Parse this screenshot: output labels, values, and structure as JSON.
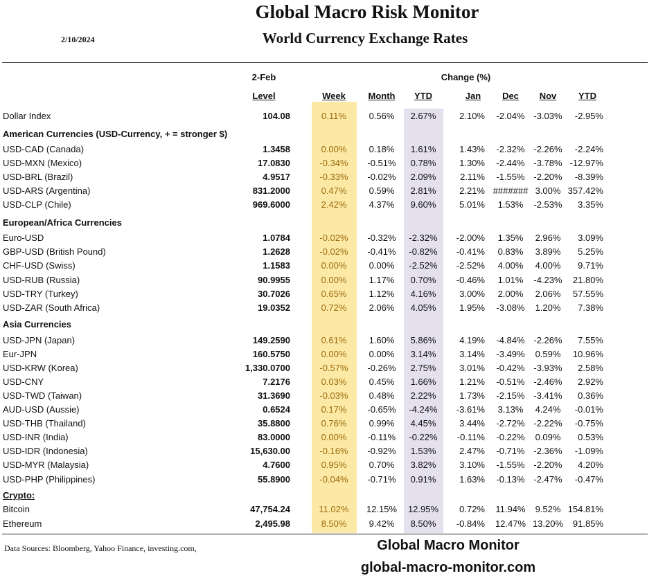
{
  "header": {
    "title": "Global Macro Risk Monitor",
    "subtitle": "World Currency Exchange Rates",
    "date": "2/10/2024"
  },
  "table": {
    "date_label": "2-Feb",
    "change_label": "Change (%)",
    "columns": [
      "Level",
      "Week",
      "Month",
      "YTD",
      "Jan",
      "Dec",
      "Nov",
      "YTD"
    ],
    "highlight_colors": {
      "week": "#fde9a6",
      "ytd": "#e4e0ee",
      "week_text": "#9a6a0a"
    },
    "rows": [
      {
        "name": "Dollar Index",
        "values": [
          "104.08",
          "0.11%",
          "0.56%",
          "2.67%",
          "2.10%",
          "-2.04%",
          "-3.03%",
          "-2.95%"
        ]
      },
      {
        "section": "American Currencies (USD-Currency, + = stronger $)"
      },
      {
        "name": "USD-CAD (Canada)",
        "values": [
          "1.3458",
          "0.00%",
          "0.18%",
          "1.61%",
          "1.43%",
          "-2.32%",
          "-2.26%",
          "-2.24%"
        ]
      },
      {
        "name": "USD-MXN  (Mexico)",
        "values": [
          "17.0830",
          "-0.34%",
          "-0.51%",
          "0.78%",
          "1.30%",
          "-2.44%",
          "-3.78%",
          "-12.97%"
        ]
      },
      {
        "name": "USD-BRL (Brazil)",
        "values": [
          "4.9517",
          "-0.33%",
          "-0.02%",
          "2.09%",
          "2.11%",
          "-1.55%",
          "-2.20%",
          "-8.39%"
        ]
      },
      {
        "name": "USD-ARS (Argentina)",
        "values": [
          "831.2000",
          "0.47%",
          "0.59%",
          "2.81%",
          "2.21%",
          "#######",
          "3.00%",
          "357.42%"
        ]
      },
      {
        "name": "USD-CLP (Chile)",
        "values": [
          "969.6000",
          "2.42%",
          "4.37%",
          "9.60%",
          "5.01%",
          "1.53%",
          "-2.53%",
          "3.35%"
        ]
      },
      {
        "section": "European/Africa Currencies"
      },
      {
        "name": "Euro-USD",
        "values": [
          "1.0784",
          "-0.02%",
          "-0.32%",
          "-2.32%",
          "-2.00%",
          "1.35%",
          "2.96%",
          "3.09%"
        ]
      },
      {
        "name": "GBP-USD (British Pound)",
        "values": [
          "1.2628",
          "-0.02%",
          "-0.41%",
          "-0.82%",
          "-0.41%",
          "0.83%",
          "3.89%",
          "5.25%"
        ]
      },
      {
        "name": "CHF-USD (Swiss)",
        "values": [
          "1.1583",
          "0.00%",
          "0.00%",
          "-2.52%",
          "-2.52%",
          "4.00%",
          "4.00%",
          "9.71%"
        ]
      },
      {
        "name": "USD-RUB (Russia)",
        "values": [
          "90.9955",
          "0.00%",
          "1.17%",
          "0.70%",
          "-0.46%",
          "1.01%",
          "-4.23%",
          "21.80%"
        ]
      },
      {
        "name": "USD-TRY (Turkey)",
        "values": [
          "30.7026",
          "0.65%",
          "1.12%",
          "4.16%",
          "3.00%",
          "2.00%",
          "2.06%",
          "57.55%"
        ]
      },
      {
        "name": "USD-ZAR (South Africa)",
        "values": [
          "19.0352",
          "0.72%",
          "2.06%",
          "4.05%",
          "1.95%",
          "-3.08%",
          "1.20%",
          "7.38%"
        ]
      },
      {
        "section": "Asia Currencies"
      },
      {
        "name": "USD-JPN (Japan)",
        "values": [
          "149.2590",
          "0.61%",
          "1.60%",
          "5.86%",
          "4.19%",
          "-4.84%",
          "-2.26%",
          "7.55%"
        ]
      },
      {
        "name": "Eur-JPN",
        "values": [
          "160.5750",
          "0.00%",
          "0.00%",
          "3.14%",
          "3.14%",
          "-3.49%",
          "0.59%",
          "10.96%"
        ]
      },
      {
        "name": "USD-KRW (Korea)",
        "values": [
          "1,330.0700",
          "-0.57%",
          "-0.26%",
          "2.75%",
          "3.01%",
          "-0.42%",
          "-3.93%",
          "2.58%"
        ]
      },
      {
        "name": "USD-CNY",
        "values": [
          "7.2176",
          "0.03%",
          "0.45%",
          "1.66%",
          "1.21%",
          "-0.51%",
          "-2.46%",
          "2.92%"
        ]
      },
      {
        "name": "USD-TWD (Taiwan)",
        "values": [
          "31.3690",
          "-0.03%",
          "0.48%",
          "2.22%",
          "1.73%",
          "-2.15%",
          "-3.41%",
          "0.36%"
        ]
      },
      {
        "name": "AUD-USD (Aussie)",
        "values": [
          "0.6524",
          "0.17%",
          "-0.65%",
          "-4.24%",
          "-3.61%",
          "3.13%",
          "4.24%",
          "-0.01%"
        ]
      },
      {
        "name": "USD-THB  (Thailand)",
        "values": [
          "35.8800",
          "0.76%",
          "0.99%",
          "4.45%",
          "3.44%",
          "-2.72%",
          "-2.22%",
          "-0.75%"
        ]
      },
      {
        "name": "USD-INR (India)",
        "values": [
          "83.0000",
          "0.00%",
          "-0.11%",
          "-0.22%",
          "-0.11%",
          "-0.22%",
          "0.09%",
          "0.53%"
        ]
      },
      {
        "name": "USD-IDR (Indonesia)",
        "values": [
          "15,630.00",
          "-0.16%",
          "-0.92%",
          "1.53%",
          "2.47%",
          "-0.71%",
          "-2.36%",
          "-1.09%"
        ]
      },
      {
        "name": "USD-MYR (Malaysia)",
        "values": [
          "4.7600",
          "0.95%",
          "0.70%",
          "3.82%",
          "3.10%",
          "-1.55%",
          "-2.20%",
          "4.20%"
        ]
      },
      {
        "name": "USD-PHP (Philippines)",
        "values": [
          "55.8900",
          "-0.04%",
          "-0.71%",
          "0.91%",
          "1.63%",
          "-0.13%",
          "-2.47%",
          "-0.47%"
        ]
      },
      {
        "section": "Crypto:",
        "underline": true
      },
      {
        "name": "Bitcoin",
        "values": [
          "47,754.24",
          "11.02%",
          "12.15%",
          "12.95%",
          "0.72%",
          "11.94%",
          "9.52%",
          "154.81%"
        ]
      },
      {
        "name": "Ethereum",
        "values": [
          "2,495.98",
          "8.50%",
          "9.42%",
          "8.50%",
          "-0.84%",
          "12.47%",
          "13.20%",
          "91.85%"
        ]
      }
    ]
  },
  "footer": {
    "sources": "Data Sources:  Bloomberg,  Yahoo Finance, investing.com,",
    "brand": "Global Macro Monitor",
    "url": "global-macro-monitor.com"
  }
}
